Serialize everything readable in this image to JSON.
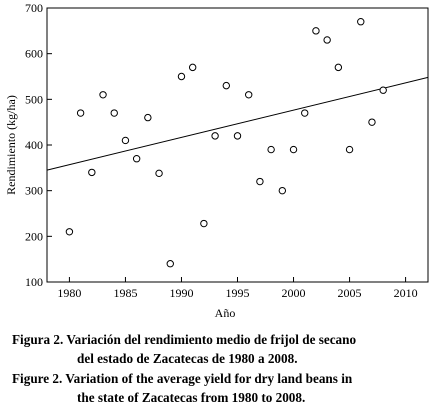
{
  "chart_data": {
    "type": "scatter",
    "title": "",
    "xlabel": "Año",
    "ylabel": "Rendimiento (kg/ha)",
    "xlim": [
      1978,
      2012
    ],
    "ylim": [
      100,
      700
    ],
    "xticks": [
      1980,
      1985,
      1990,
      1995,
      2000,
      2005,
      2010
    ],
    "yticks": [
      100,
      200,
      300,
      400,
      500,
      600,
      700
    ],
    "grid": false,
    "points": [
      {
        "x": 1980,
        "y": 210
      },
      {
        "x": 1981,
        "y": 470
      },
      {
        "x": 1982,
        "y": 340
      },
      {
        "x": 1983,
        "y": 510
      },
      {
        "x": 1984,
        "y": 470
      },
      {
        "x": 1985,
        "y": 410
      },
      {
        "x": 1986,
        "y": 370
      },
      {
        "x": 1987,
        "y": 460
      },
      {
        "x": 1988,
        "y": 338
      },
      {
        "x": 1989,
        "y": 140
      },
      {
        "x": 1990,
        "y": 550
      },
      {
        "x": 1991,
        "y": 570
      },
      {
        "x": 1992,
        "y": 228
      },
      {
        "x": 1993,
        "y": 420
      },
      {
        "x": 1994,
        "y": 530
      },
      {
        "x": 1995,
        "y": 420
      },
      {
        "x": 1996,
        "y": 510
      },
      {
        "x": 1997,
        "y": 320
      },
      {
        "x": 1998,
        "y": 390
      },
      {
        "x": 1999,
        "y": 300
      },
      {
        "x": 2000,
        "y": 390
      },
      {
        "x": 2001,
        "y": 470
      },
      {
        "x": 2002,
        "y": 650
      },
      {
        "x": 2003,
        "y": 630
      },
      {
        "x": 2004,
        "y": 570
      },
      {
        "x": 2005,
        "y": 390
      },
      {
        "x": 2006,
        "y": 670
      },
      {
        "x": 2007,
        "y": 450
      },
      {
        "x": 2008,
        "y": 520
      }
    ],
    "trendline": {
      "x": [
        1978,
        2012
      ],
      "y": [
        345,
        548
      ]
    }
  },
  "caption": {
    "es_line1": "Figura 2. Variación del rendimiento medio de frijol de secano",
    "es_line2": "del estado de Zacatecas de 1980 a 2008.",
    "en_line1": "Figure 2. Variation of the average yield for dry land beans in",
    "en_line2": "the state of Zacatecas from 1980 to 2008."
  }
}
